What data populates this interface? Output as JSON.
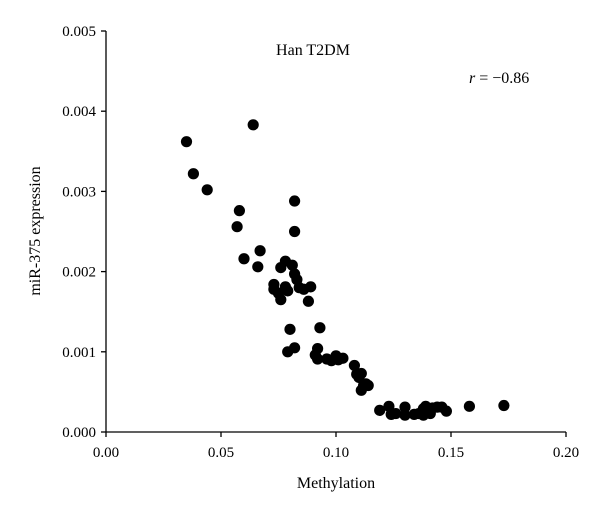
{
  "chart_data": {
    "type": "scatter",
    "title": "Han T2DM",
    "annotation_italic": "r",
    "annotation_rest": " = −0.86",
    "xlabel": "Methylation",
    "ylabel": "miR-375 expression",
    "xlim": [
      0.0,
      0.2
    ],
    "ylim": [
      0.0,
      0.005
    ],
    "xticks": [
      0.0,
      0.05,
      0.1,
      0.15,
      0.2
    ],
    "xtick_labels": [
      "0.00",
      "0.05",
      "0.10",
      "0.15",
      "0.20"
    ],
    "yticks": [
      0.0,
      0.001,
      0.002,
      0.003,
      0.004,
      0.005
    ],
    "ytick_labels": [
      "0.000",
      "0.001",
      "0.002",
      "0.003",
      "0.004",
      "0.005"
    ],
    "grid": false,
    "marker_color": "#000000",
    "points": [
      [
        0.035,
        0.00362
      ],
      [
        0.038,
        0.00322
      ],
      [
        0.044,
        0.00302
      ],
      [
        0.064,
        0.00383
      ],
      [
        0.058,
        0.00276
      ],
      [
        0.057,
        0.00256
      ],
      [
        0.06,
        0.00216
      ],
      [
        0.067,
        0.00226
      ],
      [
        0.066,
        0.00206
      ],
      [
        0.082,
        0.00288
      ],
      [
        0.082,
        0.0025
      ],
      [
        0.076,
        0.00205
      ],
      [
        0.078,
        0.00213
      ],
      [
        0.081,
        0.00208
      ],
      [
        0.082,
        0.00197
      ],
      [
        0.083,
        0.0019
      ],
      [
        0.084,
        0.0018
      ],
      [
        0.073,
        0.00184
      ],
      [
        0.073,
        0.00178
      ],
      [
        0.075,
        0.00173
      ],
      [
        0.076,
        0.00165
      ],
      [
        0.078,
        0.00181
      ],
      [
        0.079,
        0.00176
      ],
      [
        0.086,
        0.00178
      ],
      [
        0.089,
        0.00181
      ],
      [
        0.088,
        0.00163
      ],
      [
        0.08,
        0.00128
      ],
      [
        0.093,
        0.0013
      ],
      [
        0.079,
        0.001
      ],
      [
        0.082,
        0.00105
      ],
      [
        0.091,
        0.00096
      ],
      [
        0.092,
        0.00091
      ],
      [
        0.092,
        0.00104
      ],
      [
        0.096,
        0.00091
      ],
      [
        0.098,
        0.00089
      ],
      [
        0.1,
        0.00095
      ],
      [
        0.101,
        0.0009
      ],
      [
        0.103,
        0.00092
      ],
      [
        0.108,
        0.00083
      ],
      [
        0.109,
        0.00072
      ],
      [
        0.11,
        0.00068
      ],
      [
        0.111,
        0.00073
      ],
      [
        0.112,
        0.00058
      ],
      [
        0.113,
        0.0006
      ],
      [
        0.114,
        0.00058
      ],
      [
        0.111,
        0.00052
      ],
      [
        0.119,
        0.00027
      ],
      [
        0.123,
        0.00032
      ],
      [
        0.124,
        0.00022
      ],
      [
        0.126,
        0.00023
      ],
      [
        0.13,
        0.00031
      ],
      [
        0.13,
        0.00021
      ],
      [
        0.134,
        0.00022
      ],
      [
        0.136,
        0.00023
      ],
      [
        0.138,
        0.00029
      ],
      [
        0.138,
        0.00021
      ],
      [
        0.139,
        0.00032
      ],
      [
        0.14,
        0.00025
      ],
      [
        0.141,
        0.00023
      ],
      [
        0.142,
        0.0003
      ],
      [
        0.144,
        0.00031
      ],
      [
        0.146,
        0.00031
      ],
      [
        0.148,
        0.00026
      ],
      [
        0.158,
        0.00032
      ],
      [
        0.173,
        0.00033
      ]
    ]
  }
}
